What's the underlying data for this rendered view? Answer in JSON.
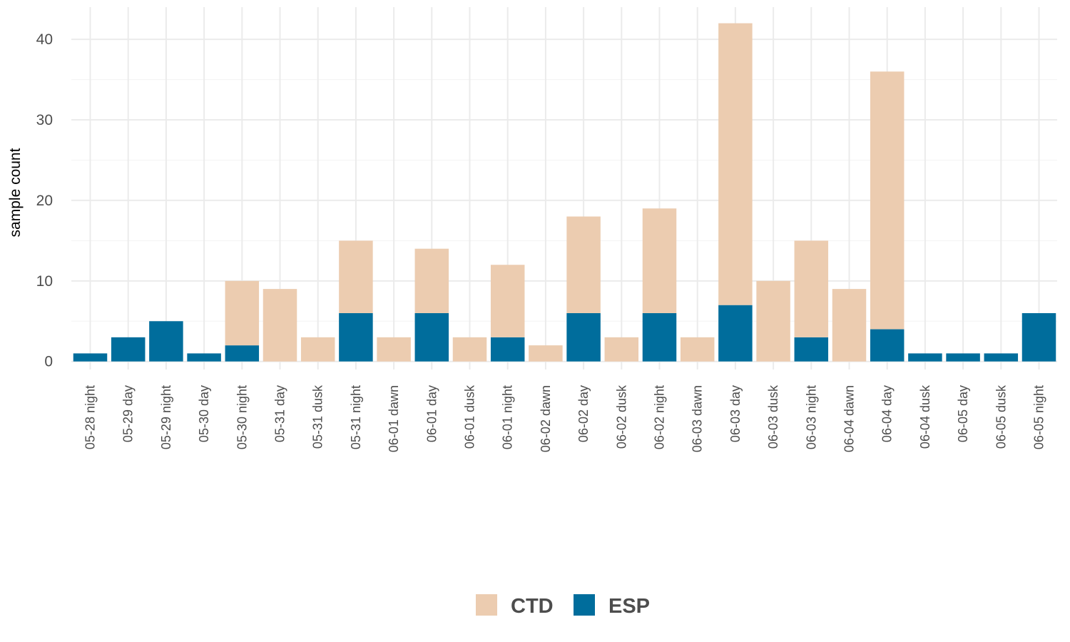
{
  "chart_data": {
    "type": "bar",
    "stacked": true,
    "title": "",
    "xlabel": "",
    "ylabel": "sample count",
    "ylim": [
      -1,
      44
    ],
    "y_ticks": [
      0,
      10,
      20,
      30,
      40
    ],
    "grid": true,
    "legend_position": "bottom",
    "categories": [
      "05-28 night",
      "05-29 day",
      "05-29 night",
      "05-30 day",
      "05-30 night",
      "05-31 day",
      "05-31 dusk",
      "05-31 night",
      "06-01 dawn",
      "06-01 day",
      "06-01 dusk",
      "06-01 night",
      "06-02 dawn",
      "06-02 day",
      "06-02 dusk",
      "06-02 night",
      "06-03 dawn",
      "06-03 day",
      "06-03 dusk",
      "06-03 night",
      "06-04 dawn",
      "06-04 day",
      "06-04 dusk",
      "06-05 day",
      "06-05 dusk",
      "06-05 night"
    ],
    "series": [
      {
        "name": "ESP",
        "color": "#006d9c",
        "values": [
          1,
          3,
          5,
          1,
          2,
          0,
          0,
          6,
          0,
          6,
          0,
          3,
          0,
          6,
          0,
          6,
          0,
          7,
          0,
          3,
          0,
          4,
          1,
          1,
          1,
          6
        ]
      },
      {
        "name": "CTD",
        "color": "#ecccb0",
        "values": [
          0,
          0,
          0,
          0,
          8,
          9,
          3,
          9,
          3,
          8,
          3,
          9,
          2,
          12,
          3,
          13,
          3,
          35,
          10,
          12,
          9,
          32,
          0,
          0,
          0,
          0
        ]
      }
    ],
    "legend": [
      {
        "label": "CTD",
        "color": "#ecccb0"
      },
      {
        "label": "ESP",
        "color": "#006d9c"
      }
    ]
  }
}
